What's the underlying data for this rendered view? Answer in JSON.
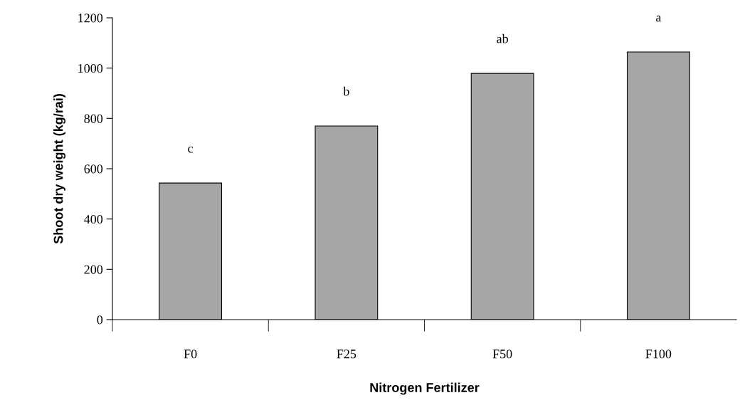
{
  "chart_data": {
    "type": "bar",
    "xlabel": "Nitrogen Fertilizer",
    "ylabel": "Shoot dry weight (kg/rai)",
    "categories": [
      "F0",
      "F25",
      "F50",
      "F100"
    ],
    "values": [
      543,
      770,
      979,
      1064
    ],
    "color": "#a6a6a6",
    "ylim": [
      0,
      1200
    ],
    "yticks": [
      0,
      200,
      400,
      600,
      800,
      1000,
      1200
    ],
    "grid": false,
    "legend": false,
    "annotations": [
      "c",
      "b",
      "ab",
      "a"
    ]
  }
}
